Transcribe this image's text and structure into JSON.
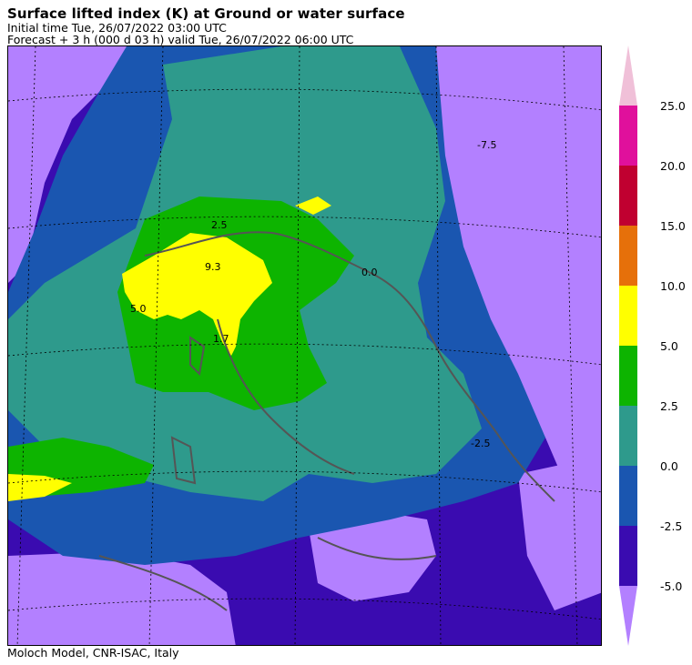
{
  "header": {
    "title": "Surface lifted index (K) at Ground or water surface",
    "initial_time": "Initial time  Tue, 26/07/2022  03:00 UTC",
    "forecast": "Forecast  +   3 h  (000 d 03 h)  valid Tue, 26/07/2022 06:00 UTC"
  },
  "footer": {
    "credit": "Moloch Model, CNR-ISAC, Italy"
  },
  "colorbar": {
    "labels": [
      "25.0",
      "20.0",
      "15.0",
      "10.0",
      "5.0",
      "2.5",
      "0.0",
      "-2.5",
      "-5.0"
    ],
    "colors": {
      "below_min": "#b380ff",
      "m5_m2_5": "#3a0bb0",
      "m2_5_0": "#1a56b0",
      "0_2_5": "#2e9a8c",
      "2_5_5": "#0db400",
      "5_10": "#ffff00",
      "10_15": "#e6700a",
      "15_20": "#c00030",
      "20_25": "#e0109c",
      "above_max": "#f0c0d8"
    }
  },
  "contour_labels": {
    "a": "9.3",
    "b": "5.0",
    "c": "1.7",
    "d": "0.0",
    "e": "-2.5",
    "f": "-7.5",
    "g": "2.5"
  }
}
